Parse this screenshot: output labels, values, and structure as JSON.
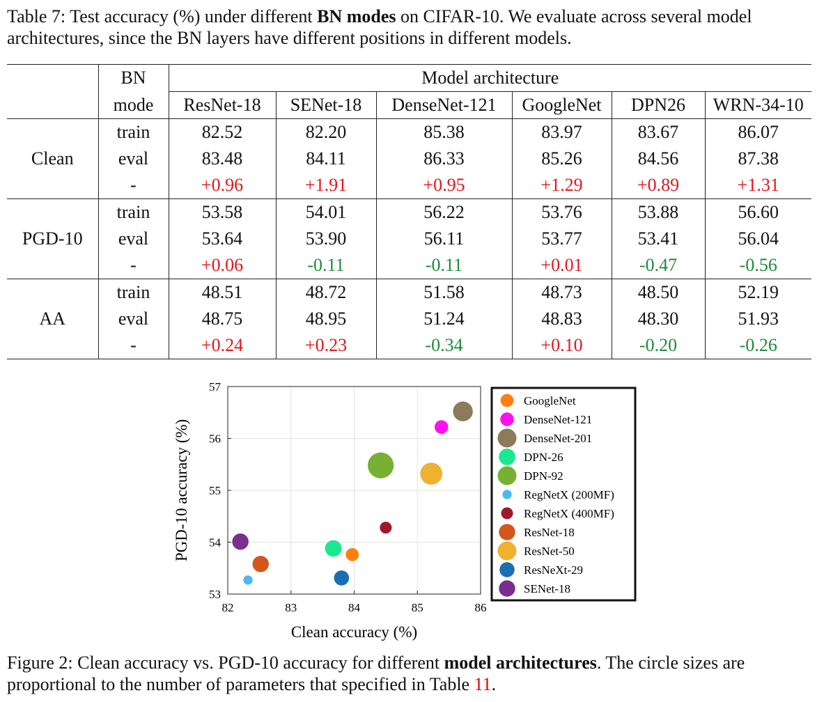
{
  "table": {
    "caption_prefix": "Table 7: Test accuracy (%) under different ",
    "caption_bold": "BN modes",
    "caption_suffix": " on CIFAR-10. We evaluate across several model architectures, since the BN layers have different positions in different models.",
    "bn_header_line1": "BN",
    "bn_header_line2": "mode",
    "span_header": "Model architecture",
    "columns": [
      "ResNet-18",
      "SENet-18",
      "DenseNet-121",
      "GoogleNet",
      "DPN26",
      "WRN-34-10"
    ],
    "groups": [
      {
        "name": "Clean",
        "rows": [
          {
            "mode": "train",
            "values": [
              "82.52",
              "82.20",
              "85.38",
              "83.97",
              "83.67",
              "86.07"
            ]
          },
          {
            "mode": "eval",
            "values": [
              "83.48",
              "84.11",
              "86.33",
              "85.26",
              "84.56",
              "87.38"
            ]
          },
          {
            "mode": "-",
            "values": [
              "+0.96",
              "+1.91",
              "+0.95",
              "+1.29",
              "+0.89",
              "+1.31"
            ]
          }
        ]
      },
      {
        "name": "PGD-10",
        "rows": [
          {
            "mode": "train",
            "values": [
              "53.58",
              "54.01",
              "56.22",
              "53.76",
              "53.88",
              "56.60"
            ]
          },
          {
            "mode": "eval",
            "values": [
              "53.64",
              "53.90",
              "56.11",
              "53.77",
              "53.41",
              "56.04"
            ]
          },
          {
            "mode": "-",
            "values": [
              "+0.06",
              "-0.11",
              "-0.11",
              "+0.01",
              "-0.47",
              "-0.56"
            ]
          }
        ]
      },
      {
        "name": "AA",
        "rows": [
          {
            "mode": "train",
            "values": [
              "48.51",
              "48.72",
              "51.58",
              "48.73",
              "48.50",
              "52.19"
            ]
          },
          {
            "mode": "eval",
            "values": [
              "48.75",
              "48.95",
              "51.24",
              "48.83",
              "48.30",
              "51.93"
            ]
          },
          {
            "mode": "-",
            "values": [
              "+0.24",
              "+0.23",
              "-0.34",
              "+0.10",
              "-0.20",
              "-0.26"
            ]
          }
        ]
      }
    ],
    "colors": {
      "positive": "#e8141c",
      "negative": "#1e8a3c"
    }
  },
  "chart_data": {
    "type": "scatter",
    "title": "",
    "xlabel": "Clean accuracy (%)",
    "ylabel": "PGD-10 accuracy (%)",
    "xlim": [
      82,
      86
    ],
    "ylim": [
      53,
      57
    ],
    "xticks": [
      82,
      83,
      84,
      85,
      86
    ],
    "yticks": [
      53,
      54,
      55,
      56,
      57
    ],
    "grid": true,
    "legend_placement": "right, outside plot",
    "size_encoding": "number of parameters",
    "series": [
      {
        "name": "GoogleNet",
        "color": "#ff7f0e",
        "x": 83.97,
        "y": 53.76,
        "params": 6.2
      },
      {
        "name": "DenseNet-121",
        "color": "#ff10f0",
        "x": 85.38,
        "y": 56.22,
        "params": 7.0
      },
      {
        "name": "DenseNet-201",
        "color": "#8c7a5a",
        "x": 85.72,
        "y": 56.52,
        "params": 18.1
      },
      {
        "name": "DPN-26",
        "color": "#1ae890",
        "x": 83.67,
        "y": 53.88,
        "params": 11.6
      },
      {
        "name": "DPN-92",
        "color": "#77b032",
        "x": 84.42,
        "y": 55.48,
        "params": 34.2
      },
      {
        "name": "RegNetX (200MF)",
        "color": "#4cb8f0",
        "x": 82.32,
        "y": 53.27,
        "params": 2.3
      },
      {
        "name": "RegNetX (400MF)",
        "color": "#a0182c",
        "x": 84.5,
        "y": 54.28,
        "params": 4.8
      },
      {
        "name": "ResNet-18",
        "color": "#d4561a",
        "x": 82.52,
        "y": 53.58,
        "params": 11.2
      },
      {
        "name": "ResNet-50",
        "color": "#f0b030",
        "x": 85.22,
        "y": 55.32,
        "params": 23.5
      },
      {
        "name": "ResNeXt-29",
        "color": "#1a6eb4",
        "x": 83.8,
        "y": 53.31,
        "params": 9.1
      },
      {
        "name": "SENet-18",
        "color": "#7a2e8e",
        "x": 82.2,
        "y": 54.01,
        "params": 11.3
      }
    ]
  },
  "figure": {
    "caption_prefix": "Figure 2: Clean accuracy vs. PGD-10 accuracy for different ",
    "caption_bold": "model architectures",
    "caption_suffix": ". The circle sizes are proportional to the number of parameters that specified in Table ",
    "caption_ref": "11",
    "caption_end": "."
  }
}
